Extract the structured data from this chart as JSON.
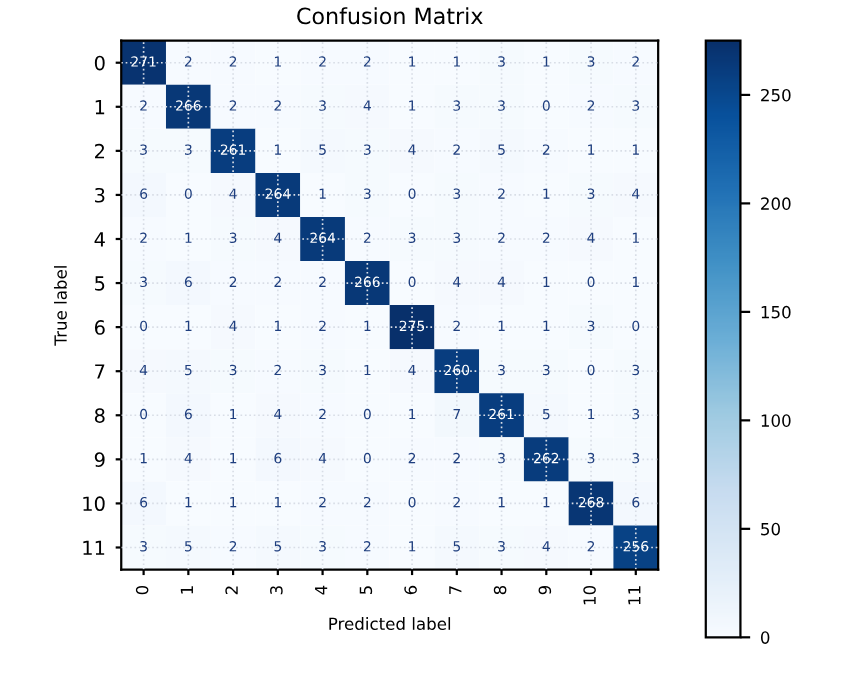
{
  "chart_data": {
    "type": "heatmap",
    "title": "Confusion Matrix",
    "xlabel": "Predicted label",
    "ylabel": "True label",
    "categories": [
      "0",
      "1",
      "2",
      "3",
      "4",
      "5",
      "6",
      "7",
      "8",
      "9",
      "10",
      "11"
    ],
    "y_categories": [
      "0",
      "1",
      "2",
      "3",
      "4",
      "5",
      "6",
      "7",
      "8",
      "9",
      "10",
      "11"
    ],
    "cells": [
      [
        271,
        2,
        2,
        1,
        2,
        2,
        1,
        1,
        3,
        1,
        3,
        2
      ],
      [
        2,
        266,
        2,
        2,
        3,
        4,
        1,
        3,
        3,
        0,
        2,
        3
      ],
      [
        3,
        3,
        261,
        1,
        5,
        3,
        4,
        2,
        5,
        2,
        1,
        1
      ],
      [
        6,
        0,
        4,
        264,
        1,
        3,
        0,
        3,
        2,
        1,
        3,
        4
      ],
      [
        2,
        1,
        3,
        4,
        264,
        2,
        3,
        3,
        2,
        2,
        4,
        1
      ],
      [
        3,
        6,
        2,
        2,
        2,
        266,
        0,
        4,
        4,
        1,
        0,
        1
      ],
      [
        0,
        1,
        4,
        1,
        2,
        1,
        275,
        2,
        1,
        1,
        3,
        0
      ],
      [
        4,
        5,
        3,
        2,
        3,
        1,
        4,
        260,
        3,
        3,
        0,
        3
      ],
      [
        0,
        6,
        1,
        4,
        2,
        0,
        1,
        7,
        261,
        5,
        1,
        3
      ],
      [
        1,
        4,
        1,
        6,
        4,
        0,
        2,
        2,
        3,
        262,
        3,
        3
      ],
      [
        6,
        1,
        1,
        1,
        2,
        2,
        0,
        2,
        1,
        1,
        268,
        6
      ],
      [
        3,
        5,
        2,
        5,
        3,
        2,
        1,
        5,
        3,
        4,
        2,
        256
      ]
    ],
    "clim": [
      0,
      275
    ],
    "cticks": [
      0,
      50,
      100,
      150,
      200,
      250
    ],
    "data_labels": true,
    "grid": true
  }
}
